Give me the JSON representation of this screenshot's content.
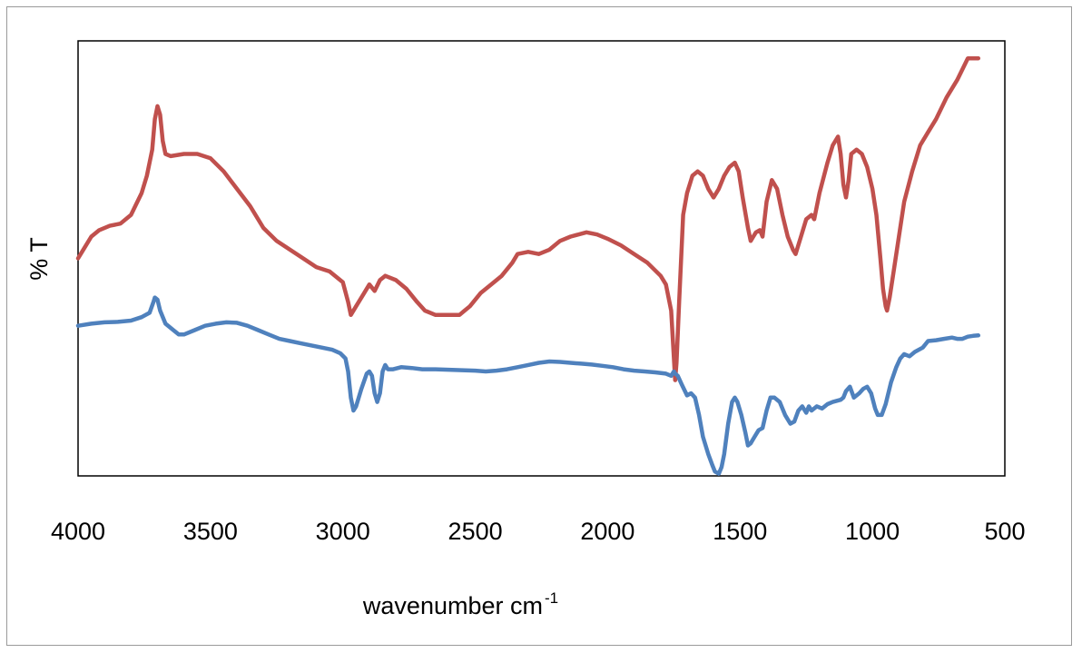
{
  "chart_data": {
    "type": "line",
    "title": "",
    "xlabel": "wavenumber cm",
    "xlabel_superscript": "-1",
    "ylabel": "% T",
    "xlim": [
      4000,
      500
    ],
    "x_reversed": true,
    "ylim": [
      0,
      100
    ],
    "x_ticks": [
      "4000",
      "3500",
      "3000",
      "2500",
      "2000",
      "1500",
      "1000",
      "500"
    ],
    "grid": false,
    "legend": "none",
    "series": [
      {
        "color": "#c0504d",
        "points": [
          [
            4000,
            50
          ],
          [
            3980,
            52
          ],
          [
            3950,
            55
          ],
          [
            3920,
            56.5
          ],
          [
            3880,
            57.5
          ],
          [
            3840,
            58
          ],
          [
            3800,
            60
          ],
          [
            3760,
            65
          ],
          [
            3740,
            69
          ],
          [
            3720,
            75
          ],
          [
            3710,
            82
          ],
          [
            3700,
            85
          ],
          [
            3690,
            83
          ],
          [
            3680,
            77
          ],
          [
            3670,
            74
          ],
          [
            3650,
            73.5
          ],
          [
            3600,
            74
          ],
          [
            3550,
            74
          ],
          [
            3500,
            73
          ],
          [
            3450,
            70
          ],
          [
            3400,
            66
          ],
          [
            3350,
            62
          ],
          [
            3300,
            57
          ],
          [
            3250,
            54
          ],
          [
            3200,
            52
          ],
          [
            3150,
            50
          ],
          [
            3100,
            48
          ],
          [
            3050,
            47
          ],
          [
            3000,
            44.5
          ],
          [
            2980,
            40
          ],
          [
            2970,
            37
          ],
          [
            2950,
            39
          ],
          [
            2920,
            42
          ],
          [
            2900,
            44
          ],
          [
            2880,
            42.5
          ],
          [
            2860,
            45
          ],
          [
            2840,
            46
          ],
          [
            2800,
            45
          ],
          [
            2760,
            43
          ],
          [
            2720,
            40
          ],
          [
            2690,
            38
          ],
          [
            2650,
            37
          ],
          [
            2600,
            37
          ],
          [
            2560,
            37
          ],
          [
            2520,
            39
          ],
          [
            2480,
            42
          ],
          [
            2440,
            44
          ],
          [
            2400,
            46
          ],
          [
            2360,
            49
          ],
          [
            2340,
            51
          ],
          [
            2300,
            51.5
          ],
          [
            2260,
            51
          ],
          [
            2220,
            52
          ],
          [
            2180,
            54
          ],
          [
            2140,
            55
          ],
          [
            2080,
            56
          ],
          [
            2040,
            55.5
          ],
          [
            2000,
            54.5
          ],
          [
            1950,
            53
          ],
          [
            1900,
            51
          ],
          [
            1850,
            49
          ],
          [
            1800,
            46
          ],
          [
            1780,
            44
          ],
          [
            1760,
            38
          ],
          [
            1745,
            22
          ],
          [
            1740,
            26
          ],
          [
            1730,
            40
          ],
          [
            1715,
            60
          ],
          [
            1700,
            65
          ],
          [
            1680,
            69
          ],
          [
            1660,
            70
          ],
          [
            1640,
            69
          ],
          [
            1620,
            66
          ],
          [
            1600,
            64
          ],
          [
            1580,
            66
          ],
          [
            1560,
            69
          ],
          [
            1540,
            71
          ],
          [
            1520,
            72
          ],
          [
            1505,
            70
          ],
          [
            1490,
            64
          ],
          [
            1470,
            57
          ],
          [
            1460,
            54
          ],
          [
            1450,
            55
          ],
          [
            1440,
            56
          ],
          [
            1425,
            56.5
          ],
          [
            1415,
            55
          ],
          [
            1400,
            63
          ],
          [
            1380,
            68
          ],
          [
            1360,
            66
          ],
          [
            1340,
            60
          ],
          [
            1320,
            55
          ],
          [
            1300,
            52
          ],
          [
            1290,
            51
          ],
          [
            1270,
            55
          ],
          [
            1250,
            59
          ],
          [
            1230,
            60
          ],
          [
            1220,
            59
          ],
          [
            1200,
            65
          ],
          [
            1170,
            72
          ],
          [
            1150,
            76
          ],
          [
            1130,
            78
          ],
          [
            1120,
            74
          ],
          [
            1110,
            67
          ],
          [
            1100,
            64
          ],
          [
            1090,
            68
          ],
          [
            1080,
            74
          ],
          [
            1060,
            75
          ],
          [
            1040,
            74
          ],
          [
            1020,
            71
          ],
          [
            1000,
            66
          ],
          [
            985,
            60
          ],
          [
            970,
            50
          ],
          [
            960,
            43
          ],
          [
            950,
            39
          ],
          [
            945,
            38
          ],
          [
            935,
            41
          ],
          [
            920,
            47
          ],
          [
            900,
            55
          ],
          [
            880,
            63
          ],
          [
            850,
            70
          ],
          [
            820,
            76
          ],
          [
            790,
            79
          ],
          [
            760,
            82
          ],
          [
            720,
            87
          ],
          [
            680,
            91
          ],
          [
            640,
            96
          ],
          [
            620,
            96
          ],
          [
            600,
            96
          ]
        ]
      },
      {
        "color": "#4f81bd",
        "points": [
          [
            4000,
            34.5
          ],
          [
            3950,
            35
          ],
          [
            3900,
            35.3
          ],
          [
            3850,
            35.4
          ],
          [
            3800,
            35.7
          ],
          [
            3760,
            36.5
          ],
          [
            3730,
            37.5
          ],
          [
            3715,
            40
          ],
          [
            3710,
            41
          ],
          [
            3700,
            40.5
          ],
          [
            3690,
            38
          ],
          [
            3670,
            35
          ],
          [
            3640,
            33.5
          ],
          [
            3620,
            32.5
          ],
          [
            3600,
            32.5
          ],
          [
            3560,
            33.5
          ],
          [
            3520,
            34.5
          ],
          [
            3480,
            35
          ],
          [
            3440,
            35.3
          ],
          [
            3400,
            35.2
          ],
          [
            3360,
            34.5
          ],
          [
            3320,
            33.5
          ],
          [
            3280,
            32.5
          ],
          [
            3240,
            31.5
          ],
          [
            3200,
            31
          ],
          [
            3160,
            30.5
          ],
          [
            3120,
            30
          ],
          [
            3080,
            29.5
          ],
          [
            3040,
            29
          ],
          [
            3010,
            28.2
          ],
          [
            2990,
            27
          ],
          [
            2980,
            24
          ],
          [
            2970,
            18
          ],
          [
            2960,
            15
          ],
          [
            2950,
            16
          ],
          [
            2930,
            20
          ],
          [
            2910,
            23.5
          ],
          [
            2900,
            24
          ],
          [
            2890,
            23
          ],
          [
            2880,
            19
          ],
          [
            2870,
            17
          ],
          [
            2860,
            19
          ],
          [
            2850,
            24
          ],
          [
            2840,
            25.5
          ],
          [
            2830,
            24.5
          ],
          [
            2810,
            24.5
          ],
          [
            2780,
            25
          ],
          [
            2740,
            24.8
          ],
          [
            2700,
            24.5
          ],
          [
            2650,
            24.5
          ],
          [
            2600,
            24.4
          ],
          [
            2550,
            24.3
          ],
          [
            2500,
            24.2
          ],
          [
            2460,
            24
          ],
          [
            2420,
            24.2
          ],
          [
            2380,
            24.5
          ],
          [
            2340,
            25
          ],
          [
            2300,
            25.5
          ],
          [
            2260,
            26
          ],
          [
            2220,
            26.3
          ],
          [
            2180,
            26.2
          ],
          [
            2140,
            26
          ],
          [
            2100,
            25.8
          ],
          [
            2060,
            25.6
          ],
          [
            2020,
            25.3
          ],
          [
            1980,
            25
          ],
          [
            1940,
            24.5
          ],
          [
            1900,
            24.2
          ],
          [
            1860,
            24
          ],
          [
            1820,
            23.8
          ],
          [
            1780,
            23.5
          ],
          [
            1760,
            23
          ],
          [
            1750,
            24
          ],
          [
            1745,
            23.5
          ],
          [
            1735,
            23
          ],
          [
            1720,
            21
          ],
          [
            1700,
            18.5
          ],
          [
            1685,
            19
          ],
          [
            1670,
            18
          ],
          [
            1655,
            14
          ],
          [
            1640,
            9
          ],
          [
            1620,
            5
          ],
          [
            1605,
            2.5
          ],
          [
            1595,
            1
          ],
          [
            1580,
            0.5
          ],
          [
            1570,
            2
          ],
          [
            1560,
            5
          ],
          [
            1545,
            12
          ],
          [
            1530,
            17
          ],
          [
            1520,
            18
          ],
          [
            1510,
            17
          ],
          [
            1495,
            14
          ],
          [
            1480,
            10
          ],
          [
            1470,
            7
          ],
          [
            1460,
            7.5
          ],
          [
            1445,
            9
          ],
          [
            1430,
            10.5
          ],
          [
            1415,
            11
          ],
          [
            1400,
            15
          ],
          [
            1385,
            18
          ],
          [
            1370,
            18
          ],
          [
            1350,
            17
          ],
          [
            1330,
            14
          ],
          [
            1310,
            12
          ],
          [
            1295,
            12.5
          ],
          [
            1280,
            15
          ],
          [
            1265,
            16
          ],
          [
            1250,
            14.5
          ],
          [
            1240,
            16
          ],
          [
            1230,
            15
          ],
          [
            1210,
            16
          ],
          [
            1190,
            15.5
          ],
          [
            1170,
            16.5
          ],
          [
            1150,
            17
          ],
          [
            1120,
            17.5
          ],
          [
            1110,
            18
          ],
          [
            1100,
            19.5
          ],
          [
            1085,
            20.5
          ],
          [
            1070,
            18
          ],
          [
            1050,
            19
          ],
          [
            1035,
            20
          ],
          [
            1020,
            20.5
          ],
          [
            1005,
            19
          ],
          [
            990,
            15.5
          ],
          [
            980,
            14
          ],
          [
            965,
            14
          ],
          [
            950,
            16.5
          ],
          [
            930,
            21.5
          ],
          [
            910,
            25
          ],
          [
            895,
            27
          ],
          [
            880,
            28
          ],
          [
            860,
            27.5
          ],
          [
            840,
            28.5
          ],
          [
            810,
            29.5
          ],
          [
            790,
            31
          ],
          [
            760,
            31.2
          ],
          [
            730,
            31.5
          ],
          [
            700,
            31.8
          ],
          [
            680,
            31.5
          ],
          [
            660,
            31.5
          ],
          [
            640,
            32
          ],
          [
            620,
            32.2
          ],
          [
            600,
            32.3
          ]
        ]
      }
    ]
  }
}
